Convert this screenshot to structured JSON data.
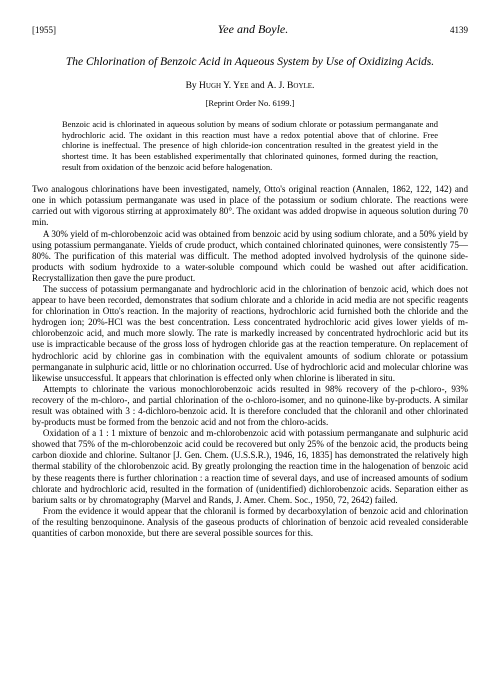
{
  "header": {
    "year": "[1955]",
    "authors": "Yee and Boyle.",
    "page": "4139"
  },
  "title": "The Chlorination of Benzoic Acid in Aqueous System by Use of Oxidizing Acids.",
  "byline_prefix": "By ",
  "byline_author1": "Hugh Y. Yee",
  "byline_and": " and ",
  "byline_author2": "A. J. Boyle.",
  "reprint": "[Reprint Order No. 6199.]",
  "abstract": "Benzoic acid is chlorinated in aqueous solution by means of sodium chlorate or potassium permanganate and hydrochloric acid. The oxidant in this reaction must have a redox potential above that of chlorine. Free chlorine is ineffectual. The presence of high chloride-ion concentration resulted in the greatest yield in the shortest time. It has been established experimentally that chlorinated quinones, formed during the reaction, result from oxidation of the benzoic acid before halogenation.",
  "paragraphs": [
    "Two analogous chlorinations have been investigated, namely, Otto's original reaction (Annalen, 1862, 122, 142) and one in which potassium permanganate was used in place of the potassium or sodium chlorate. The reactions were carried out with vigorous stirring at approximately 80°. The oxidant was added dropwise in aqueous solution during 70 min.",
    "A 30% yield of m-chlorobenzoic acid was obtained from benzoic acid by using sodium chlorate, and a 50% yield by using potassium permanganate. Yields of crude product, which contained chlorinated quinones, were consistently 75—80%. The purification of this material was difficult. The method adopted involved hydrolysis of the quinone side-products with sodium hydroxide to a water-soluble compound which could be washed out after acidification. Recrystallization then gave the pure product.",
    "The success of potassium permanganate and hydrochloric acid in the chlorination of benzoic acid, which does not appear to have been recorded, demonstrates that sodium chlorate and a chloride in acid media are not specific reagents for chlorination in Otto's reaction. In the majority of reactions, hydrochloric acid furnished both the chloride and the hydrogen ion; 20%-HCl was the best concentration. Less concentrated hydrochloric acid gives lower yields of m-chlorobenzoic acid, and much more slowly. The rate is markedly increased by concentrated hydrochloric acid but its use is impracticable because of the gross loss of hydrogen chloride gas at the reaction temperature. On replacement of hydrochloric acid by chlorine gas in combination with the equivalent amounts of sodium chlorate or potassium permanganate in sulphuric acid, little or no chlorination occurred. Use of hydrochloric acid and molecular chlorine was likewise unsuccessful. It appears that chlorination is effected only when chlorine is liberated in situ.",
    "Attempts to chlorinate the various monochlorobenzoic acids resulted in 98% recovery of the p-chloro-, 93% recovery of the m-chloro-, and partial chlorination of the o-chloro-isomer, and no quinone-like by-products. A similar result was obtained with 3 : 4-dichloro-benzoic acid. It is therefore concluded that the chloranil and other chlorinated by-products must be formed from the benzoic acid and not from the chloro-acids.",
    "Oxidation of a 1 : 1 mixture of benzoic and m-chlorobenzoic acid with potassium permanganate and sulphuric acid showed that 75% of the m-chlorobenzoic acid could be recovered but only 25% of the benzoic acid, the products being carbon dioxide and chlorine. Sultanor [J. Gen. Chem. (U.S.S.R.), 1946, 16, 1835] has demonstrated the relatively high thermal stability of the chlorobenzoic acid. By greatly prolonging the reaction time in the halogenation of benzoic acid by these reagents there is further chlorination : a reaction time of several days, and use of increased amounts of sodium chlorate and hydrochloric acid, resulted in the formation of (unidentified) dichlorobenzoic acids. Separation either as barium salts or by chromatography (Marvel and Rands, J. Amer. Chem. Soc., 1950, 72, 2642) failed.",
    "From the evidence it would appear that the chloranil is formed by decarboxylation of benzoic acid and chlorination of the resulting benzoquinone. Analysis of the gaseous products of chlorination of benzoic acid revealed considerable quantities of carbon monoxide, but there are several possible sources for this."
  ]
}
